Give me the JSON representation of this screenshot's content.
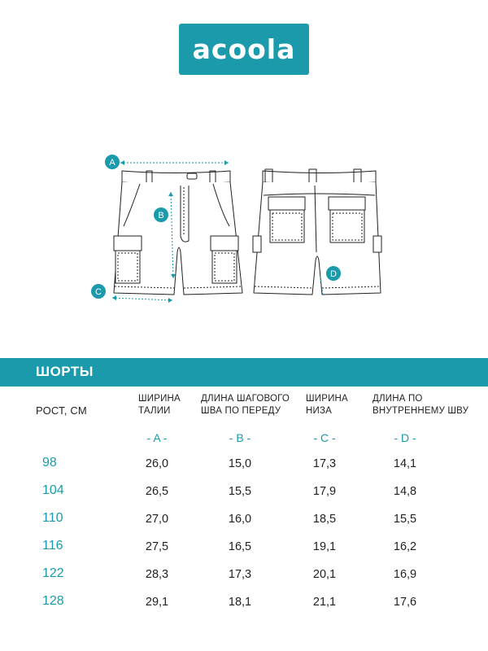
{
  "brand": {
    "logo_text": "acoola",
    "color": "#1a9aaa"
  },
  "markers": [
    "A",
    "B",
    "C",
    "D"
  ],
  "section_title": "ШОРТЫ",
  "table": {
    "height_label": "РОСТ, СМ",
    "columns": [
      {
        "line1": "ШИРИНА",
        "line2": "ТАЛИИ",
        "code": "- A -"
      },
      {
        "line1": "ДЛИНА ШАГОВОГО",
        "line2": "ШВА ПО ПЕРЕДУ",
        "code": "- B -"
      },
      {
        "line1": "ШИРИНА",
        "line2": "НИЗА",
        "code": "- C -"
      },
      {
        "line1": "ДЛИНА ПО",
        "line2": "ВНУТРЕННЕМУ ШВУ",
        "code": "- D -"
      }
    ],
    "rows": [
      {
        "height": "98",
        "values": [
          "26,0",
          "15,0",
          "17,3",
          "14,1"
        ]
      },
      {
        "height": "104",
        "values": [
          "26,5",
          "15,5",
          "17,9",
          "14,8"
        ]
      },
      {
        "height": "110",
        "values": [
          "27,0",
          "16,0",
          "18,5",
          "15,5"
        ]
      },
      {
        "height": "116",
        "values": [
          "27,5",
          "16,5",
          "19,1",
          "16,2"
        ]
      },
      {
        "height": "122",
        "values": [
          "28,3",
          "17,3",
          "20,1",
          "16,9"
        ]
      },
      {
        "height": "128",
        "values": [
          "29,1",
          "18,1",
          "21,1",
          "17,6"
        ]
      }
    ]
  }
}
